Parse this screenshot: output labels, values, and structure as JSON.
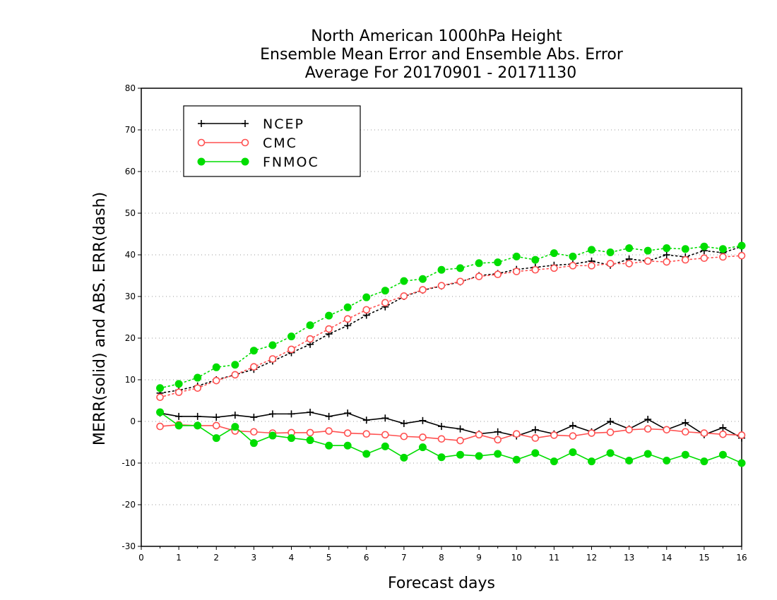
{
  "chart_data": {
    "type": "line",
    "title": [
      "North American 1000hPa Height",
      "Ensemble Mean Error and Ensemble Abs. Error",
      "Average For 20170901 - 20171130"
    ],
    "xlabel": "Forecast days",
    "ylabel": "MERR(solid) and ABS. ERR(dash)",
    "xlim": [
      0,
      16
    ],
    "ylim": [
      -30,
      80
    ],
    "xticks": [
      0,
      1,
      2,
      3,
      4,
      5,
      6,
      7,
      8,
      9,
      10,
      11,
      12,
      13,
      14,
      15,
      16
    ],
    "yticks": [
      -30,
      -20,
      -10,
      0,
      10,
      20,
      30,
      40,
      50,
      60,
      70,
      80
    ],
    "grid": "horizontal dotted",
    "legend_position": "top-left",
    "x": [
      0.5,
      1.0,
      1.5,
      2.0,
      2.5,
      3.0,
      3.5,
      4.0,
      4.5,
      5.0,
      5.5,
      6.0,
      6.5,
      7.0,
      7.5,
      8.0,
      8.5,
      9.0,
      9.5,
      10.0,
      10.5,
      11.0,
      11.5,
      12.0,
      12.5,
      13.0,
      13.5,
      14.0,
      14.5,
      15.0,
      15.5,
      16.0
    ],
    "series": [
      {
        "name": "NCEP",
        "color": "#000000",
        "marker": "plus",
        "merr": [
          2.0,
          1.2,
          1.2,
          1.0,
          1.5,
          1.0,
          1.8,
          1.8,
          2.2,
          1.2,
          2.0,
          0.3,
          0.8,
          -0.5,
          0.2,
          -1.2,
          -1.8,
          -3.0,
          -2.5,
          -3.5,
          -2.0,
          -3.0,
          -1.0,
          -2.5,
          0.0,
          -1.8,
          0.5,
          -2.0,
          -0.3,
          -3.2,
          -1.5,
          -4.0
        ],
        "abs_err": [
          6.8,
          7.5,
          8.5,
          10.0,
          11.2,
          12.5,
          14.5,
          16.5,
          18.5,
          21.0,
          23.0,
          25.5,
          27.5,
          30.0,
          31.5,
          32.5,
          33.5,
          35.0,
          35.5,
          36.5,
          37.0,
          37.5,
          37.8,
          38.5,
          37.5,
          39.0,
          38.5,
          40.0,
          39.5,
          41.0,
          40.5,
          42.0
        ]
      },
      {
        "name": "CMC",
        "color": "#ff5050",
        "marker": "open-circle",
        "merr": [
          -1.2,
          -0.8,
          -1.0,
          -1.0,
          -2.3,
          -2.5,
          -2.8,
          -2.7,
          -2.7,
          -2.3,
          -2.8,
          -3.0,
          -3.2,
          -3.6,
          -3.8,
          -4.2,
          -4.6,
          -3.2,
          -4.4,
          -3.0,
          -4.0,
          -3.3,
          -3.5,
          -2.8,
          -2.6,
          -2.0,
          -1.8,
          -2.0,
          -2.5,
          -2.8,
          -3.1,
          -3.3
        ],
        "abs_err": [
          5.8,
          7.0,
          8.0,
          9.8,
          11.2,
          13.1,
          15.0,
          17.3,
          19.8,
          22.2,
          24.6,
          26.8,
          28.5,
          30.1,
          31.6,
          32.6,
          33.6,
          34.8,
          35.3,
          36.0,
          36.4,
          36.8,
          37.4,
          37.4,
          37.9,
          37.9,
          38.5,
          38.3,
          38.8,
          39.2,
          39.5,
          39.8
        ]
      },
      {
        "name": "FNMOC",
        "color": "#00dd00",
        "marker": "filled-circle",
        "merr": [
          2.2,
          -1.0,
          -1.0,
          -4.0,
          -1.3,
          -5.2,
          -3.4,
          -4.0,
          -4.5,
          -5.8,
          -5.8,
          -7.8,
          -6.0,
          -8.7,
          -6.2,
          -8.6,
          -8.0,
          -8.3,
          -7.8,
          -9.2,
          -7.6,
          -9.6,
          -7.4,
          -9.6,
          -7.6,
          -9.4,
          -7.8,
          -9.4,
          -8.0,
          -9.6,
          -8.0,
          -10.0
        ],
        "abs_err": [
          8.0,
          9.0,
          10.5,
          13.0,
          13.6,
          17.0,
          18.3,
          20.4,
          23.1,
          25.4,
          27.4,
          29.8,
          31.4,
          33.7,
          34.2,
          36.4,
          36.8,
          38.0,
          38.2,
          39.6,
          38.8,
          40.4,
          39.6,
          41.2,
          40.6,
          41.6,
          41.0,
          41.6,
          41.4,
          42.0,
          41.4,
          42.2
        ]
      }
    ]
  }
}
